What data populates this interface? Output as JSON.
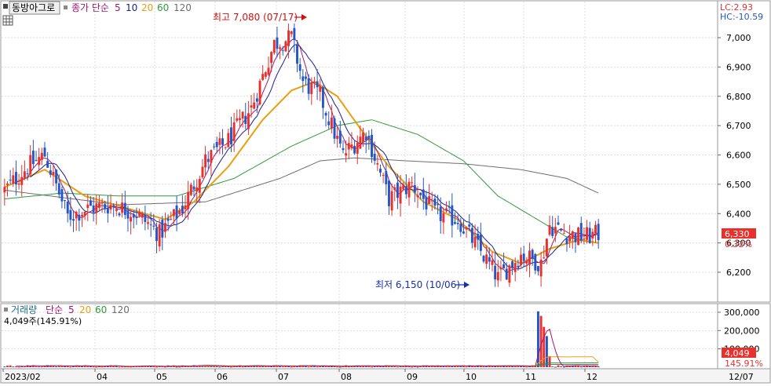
{
  "header": {
    "stock_name": "동방아그로",
    "price_legend_label": "종가 단순",
    "ma_periods": [
      "5",
      "10",
      "20",
      "60",
      "120"
    ],
    "lc_label": "LC:2.93",
    "hc_label": "HC:-10.59"
  },
  "volume_header": {
    "label": "거래량",
    "ma_label": "단순",
    "ma_periods": [
      "5",
      "20",
      "60",
      "120"
    ],
    "current_value_text": "4,049주(145.91%)"
  },
  "annotations": {
    "high_text": "최고 7,080 (07/17)",
    "low_text": "최저 6,150 (10/06)"
  },
  "price_axis": {
    "ticks": [
      "7,000",
      "6,900",
      "6,800",
      "6,700",
      "6,600",
      "6,500",
      "6,400",
      "6,300",
      "6,200"
    ],
    "current_price": "6,330",
    "current_change": "0.32%"
  },
  "volume_axis": {
    "ticks": [
      "300,000",
      "200,000",
      "100,000"
    ],
    "current_volume": "4,049",
    "current_pct": "145.91%"
  },
  "x_axis": {
    "labels": [
      "2023/02",
      "04",
      "05",
      "06",
      "07",
      "08",
      "09",
      "10",
      "11",
      "12"
    ],
    "right_label": "12/07"
  },
  "colors": {
    "up": "#e8302c",
    "down": "#2457c5",
    "ma5": "#a0186e",
    "ma10": "#1d1d8f",
    "ma20": "#e8a010",
    "ma60": "#2e9a3a",
    "ma120": "#6e6e6e",
    "current_price_box": "#e8302c",
    "grid": "#dcdcdc"
  },
  "chart_data": {
    "type": "candlestick",
    "price_range": [
      6120,
      7100
    ],
    "volume_range": [
      0,
      330000
    ],
    "x_months": [
      "2023/02",
      "04",
      "05",
      "06",
      "07",
      "08",
      "09",
      "10",
      "11",
      "12"
    ],
    "candle_count": 208,
    "high": {
      "value": 7080,
      "date": "07/17"
    },
    "low": {
      "value": 6150,
      "date": "10/06"
    },
    "last_close": 6330,
    "last_change_pct": 0.32,
    "last_volume": 4049,
    "last_volume_pct": 145.91,
    "close_path": [
      {
        "i": 0,
        "v": 6480
      },
      {
        "i": 8,
        "v": 6560
      },
      {
        "i": 14,
        "v": 6600
      },
      {
        "i": 22,
        "v": 6390
      },
      {
        "i": 30,
        "v": 6420
      },
      {
        "i": 38,
        "v": 6430
      },
      {
        "i": 46,
        "v": 6400
      },
      {
        "i": 54,
        "v": 6330
      },
      {
        "i": 62,
        "v": 6420
      },
      {
        "i": 70,
        "v": 6580
      },
      {
        "i": 78,
        "v": 6650
      },
      {
        "i": 86,
        "v": 6760
      },
      {
        "i": 94,
        "v": 6980
      },
      {
        "i": 100,
        "v": 7000
      },
      {
        "i": 104,
        "v": 6850
      },
      {
        "i": 110,
        "v": 6800
      },
      {
        "i": 118,
        "v": 6600
      },
      {
        "i": 126,
        "v": 6680
      },
      {
        "i": 134,
        "v": 6450
      },
      {
        "i": 142,
        "v": 6500
      },
      {
        "i": 150,
        "v": 6400
      },
      {
        "i": 158,
        "v": 6380
      },
      {
        "i": 166,
        "v": 6270
      },
      {
        "i": 172,
        "v": 6180
      },
      {
        "i": 180,
        "v": 6260
      },
      {
        "i": 187,
        "v": 6230
      },
      {
        "i": 190,
        "v": 6360
      },
      {
        "i": 196,
        "v": 6330
      },
      {
        "i": 202,
        "v": 6320
      },
      {
        "i": 207,
        "v": 6330
      }
    ],
    "volume_spikes": [
      {
        "i": 186,
        "v": 305000
      },
      {
        "i": 187,
        "v": 280000
      },
      {
        "i": 188,
        "v": 220000
      },
      {
        "i": 189,
        "v": 170000
      },
      {
        "i": 190,
        "v": 60000
      }
    ],
    "ma_series": {
      "ma20": [
        {
          "i": 0,
          "v": 6490
        },
        {
          "i": 14,
          "v": 6550
        },
        {
          "i": 28,
          "v": 6460
        },
        {
          "i": 42,
          "v": 6420
        },
        {
          "i": 56,
          "v": 6380
        },
        {
          "i": 66,
          "v": 6440
        },
        {
          "i": 78,
          "v": 6560
        },
        {
          "i": 90,
          "v": 6720
        },
        {
          "i": 100,
          "v": 6820
        },
        {
          "i": 108,
          "v": 6850
        },
        {
          "i": 116,
          "v": 6800
        },
        {
          "i": 124,
          "v": 6690
        },
        {
          "i": 134,
          "v": 6560
        },
        {
          "i": 146,
          "v": 6440
        },
        {
          "i": 158,
          "v": 6380
        },
        {
          "i": 170,
          "v": 6270
        },
        {
          "i": 180,
          "v": 6230
        },
        {
          "i": 190,
          "v": 6280
        },
        {
          "i": 200,
          "v": 6310
        },
        {
          "i": 207,
          "v": 6300
        }
      ],
      "ma60": [
        {
          "i": 0,
          "v": 6450
        },
        {
          "i": 20,
          "v": 6470
        },
        {
          "i": 40,
          "v": 6460
        },
        {
          "i": 60,
          "v": 6460
        },
        {
          "i": 80,
          "v": 6520
        },
        {
          "i": 100,
          "v": 6630
        },
        {
          "i": 116,
          "v": 6700
        },
        {
          "i": 128,
          "v": 6720
        },
        {
          "i": 144,
          "v": 6670
        },
        {
          "i": 160,
          "v": 6580
        },
        {
          "i": 172,
          "v": 6460
        },
        {
          "i": 184,
          "v": 6390
        },
        {
          "i": 196,
          "v": 6320
        },
        {
          "i": 207,
          "v": 6300
        }
      ],
      "ma120": [
        {
          "i": 0,
          "v": 6480
        },
        {
          "i": 40,
          "v": 6430
        },
        {
          "i": 70,
          "v": 6440
        },
        {
          "i": 96,
          "v": 6520
        },
        {
          "i": 110,
          "v": 6580
        },
        {
          "i": 122,
          "v": 6590
        },
        {
          "i": 140,
          "v": 6580
        },
        {
          "i": 160,
          "v": 6570
        },
        {
          "i": 180,
          "v": 6550
        },
        {
          "i": 196,
          "v": 6520
        },
        {
          "i": 207,
          "v": 6470
        }
      ]
    }
  }
}
